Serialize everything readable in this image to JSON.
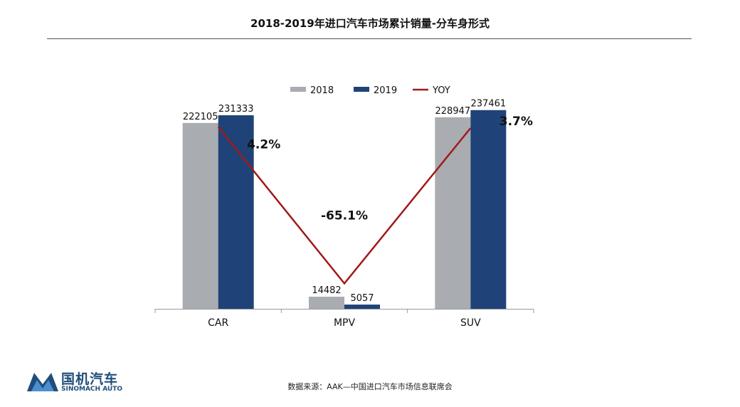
{
  "header": {
    "title": "2018-2019年进口汽车市场累计销量-分车身形式"
  },
  "footer": {
    "source": "数据来源：AAK—中国进口汽车市场信息联席会",
    "logo_cn": "国机汽车",
    "logo_en": "SINOMACH AUTO"
  },
  "colors": {
    "s2018": "#a9acb0",
    "s2019": "#1f4378",
    "yoy": "#a01a1a",
    "axis": "#999999"
  },
  "chart_data": {
    "type": "bar",
    "title": "2018-2019年进口汽车市场累计销量-分车身形式",
    "categories": [
      "CAR",
      "MPV",
      "SUV"
    ],
    "series": [
      {
        "name": "2018",
        "values": [
          222105,
          14482,
          228947
        ]
      },
      {
        "name": "2019",
        "values": [
          231333,
          5057,
          237461
        ]
      }
    ],
    "line_series": {
      "name": "YOY",
      "values": [
        4.2,
        -65.1,
        3.7
      ],
      "labels": [
        "4.2%",
        "-65.1%",
        "3.7%"
      ],
      "ylim": [
        -70,
        10
      ]
    },
    "ylim": [
      0,
      250000
    ],
    "legend": [
      "2018",
      "2019",
      "YOY"
    ],
    "legend_position": "top",
    "grid": false
  }
}
